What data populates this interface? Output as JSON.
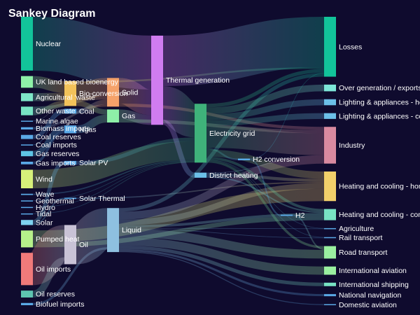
{
  "chart_data": {
    "type": "sankey",
    "title": "Sankey Diagram",
    "background": "#0f0b2e",
    "label_color": "#ffffff",
    "nodes": [
      {
        "id": "nuclear",
        "label": "Nuclear",
        "column": 0,
        "color": "#12c49a"
      },
      {
        "id": "uk_bio",
        "label": "UK land based bioenergy",
        "column": 0,
        "color": "#8ef0a8"
      },
      {
        "id": "agri_waste",
        "label": "Agricultural 'waste'",
        "column": 0,
        "color": "#7ee6c8"
      },
      {
        "id": "other_waste",
        "label": "Other waste",
        "column": 0,
        "color": "#78e3c3"
      },
      {
        "id": "marine_algae",
        "label": "Marine algae",
        "column": 0,
        "color": "#5aa9e6"
      },
      {
        "id": "biomass_imports",
        "label": "Biomass imports",
        "column": 0,
        "color": "#5aa9e6"
      },
      {
        "id": "coal_reserves",
        "label": "Coal reserves",
        "column": 0,
        "color": "#5aa9e6"
      },
      {
        "id": "coal_imports",
        "label": "Coal imports",
        "column": 0,
        "color": "#5aa9e6"
      },
      {
        "id": "gas_reserves",
        "label": "Gas reserves",
        "column": 0,
        "color": "#5ec5e6"
      },
      {
        "id": "gas_imports",
        "label": "Gas imports",
        "column": 0,
        "color": "#5aa9e6"
      },
      {
        "id": "wind",
        "label": "Wind",
        "column": 0,
        "color": "#d7f07a"
      },
      {
        "id": "wave",
        "label": "Wave",
        "column": 0,
        "color": "#5aa9e6"
      },
      {
        "id": "geothermal",
        "label": "Geothermal",
        "column": 0,
        "color": "#5aa9e6"
      },
      {
        "id": "hydro",
        "label": "Hydro",
        "column": 0,
        "color": "#5aa9e6"
      },
      {
        "id": "tidal",
        "label": "Tidal",
        "column": 0,
        "color": "#5aa9e6"
      },
      {
        "id": "solar",
        "label": "Solar",
        "column": 0,
        "color": "#7fd3f0"
      },
      {
        "id": "pumped_heat",
        "label": "Pumped heat",
        "column": 0,
        "color": "#b6f08a"
      },
      {
        "id": "oil_imports",
        "label": "Oil imports",
        "column": 0,
        "color": "#f07a7a"
      },
      {
        "id": "oil_reserves",
        "label": "Oil reserves",
        "column": 0,
        "color": "#5ec5b0"
      },
      {
        "id": "biofuel_imports",
        "label": "Biofuel imports",
        "column": 0,
        "color": "#5aa9e6"
      },
      {
        "id": "bio_conversion",
        "label": "Bio-conversion",
        "column": 1,
        "color": "#f2c25a"
      },
      {
        "id": "coal",
        "label": "Coal",
        "column": 1,
        "color": "#5aa9e6"
      },
      {
        "id": "ngas",
        "label": "Ngas",
        "column": 1,
        "color": "#5aa9e6"
      },
      {
        "id": "solar_pv",
        "label": "Solar PV",
        "column": 1,
        "color": "#5aa9e6"
      },
      {
        "id": "solar_thermal",
        "label": "Solar Thermal",
        "column": 1,
        "color": "#5aa9e6"
      },
      {
        "id": "oil",
        "label": "Oil",
        "column": 1,
        "color": "#c9c3d6"
      },
      {
        "id": "solid",
        "label": "Solid",
        "column": 2,
        "color": "#f5a26a"
      },
      {
        "id": "gas",
        "label": "Gas",
        "column": 2,
        "color": "#8ef0a8"
      },
      {
        "id": "liquid",
        "label": "Liquid",
        "column": 2,
        "color": "#8ec0e0"
      },
      {
        "id": "thermal_generation",
        "label": "Thermal generation",
        "column": 3,
        "color": "#d07cf0"
      },
      {
        "id": "electricity_grid",
        "label": "Electricity grid",
        "column": 4,
        "color": "#3fb27a"
      },
      {
        "id": "district_heating",
        "label": "District heating",
        "column": 4,
        "color": "#6cc0e8"
      },
      {
        "id": "h2_conversion",
        "label": "H2 conversion",
        "column": 5,
        "color": "#5aa9e6"
      },
      {
        "id": "h2",
        "label": "H2",
        "column": 6,
        "color": "#5aa9e6"
      },
      {
        "id": "losses",
        "label": "Losses",
        "column": 7,
        "color": "#12c49a"
      },
      {
        "id": "over_generation",
        "label": "Over generation / exports",
        "column": 7,
        "color": "#7ee6d8"
      },
      {
        "id": "lighting_home",
        "label": "Lighting & appliances - homes",
        "column": 7,
        "color": "#6cc0e8"
      },
      {
        "id": "lighting_commercial",
        "label": "Lighting & appliances - commercial",
        "column": 7,
        "color": "#6cc0e8"
      },
      {
        "id": "industry",
        "label": "Industry",
        "column": 7,
        "color": "#d98aa0"
      },
      {
        "id": "heating_home",
        "label": "Heating and cooling - homes",
        "column": 7,
        "color": "#f2d06a"
      },
      {
        "id": "heating_commercial",
        "label": "Heating and cooling - commercial",
        "column": 7,
        "color": "#78e3c3"
      },
      {
        "id": "agriculture",
        "label": "Agriculture",
        "column": 7,
        "color": "#5aa9e6"
      },
      {
        "id": "rail_transport",
        "label": "Rail transport",
        "column": 7,
        "color": "#5aa9e6"
      },
      {
        "id": "road_transport",
        "label": "Road transport",
        "column": 7,
        "color": "#9af0a0"
      },
      {
        "id": "international_aviation",
        "label": "International aviation",
        "column": 7,
        "color": "#9af0a0"
      },
      {
        "id": "international_shipping",
        "label": "International shipping",
        "column": 7,
        "color": "#78e3c3"
      },
      {
        "id": "national_navigation",
        "label": "National navigation",
        "column": 7,
        "color": "#5aa9e6"
      },
      {
        "id": "domestic_aviation",
        "label": "Domestic aviation",
        "column": 7,
        "color": "#5aa9e6"
      }
    ],
    "links": [
      {
        "source": "nuclear",
        "target": "thermal_generation",
        "value": 839.978
      },
      {
        "source": "uk_bio",
        "target": "bio_conversion",
        "value": 182.01
      },
      {
        "source": "agri_waste",
        "target": "bio_conversion",
        "value": 124.729
      },
      {
        "source": "other_waste",
        "target": "bio_conversion",
        "value": 77.81
      },
      {
        "source": "other_waste",
        "target": "solid",
        "value": 56.587
      },
      {
        "source": "marine_algae",
        "target": "bio_conversion",
        "value": 4.375
      },
      {
        "source": "biomass_imports",
        "target": "solid",
        "value": 35
      },
      {
        "source": "coal_reserves",
        "target": "coal",
        "value": 63.965
      },
      {
        "source": "coal_imports",
        "target": "coal",
        "value": 11.606
      },
      {
        "source": "gas_reserves",
        "target": "ngas",
        "value": 82.233
      },
      {
        "source": "gas_imports",
        "target": "ngas",
        "value": 40.719
      },
      {
        "source": "wind",
        "target": "electricity_grid",
        "value": 289.366
      },
      {
        "source": "wave",
        "target": "electricity_grid",
        "value": 19.013
      },
      {
        "source": "geothermal",
        "target": "electricity_grid",
        "value": 7.013
      },
      {
        "source": "hydro",
        "target": "electricity_grid",
        "value": 6.995
      },
      {
        "source": "tidal",
        "target": "electricity_grid",
        "value": 9.452
      },
      {
        "source": "solar",
        "target": "solar_pv",
        "value": 59.901
      },
      {
        "source": "solar",
        "target": "solar_thermal",
        "value": 19.263
      },
      {
        "source": "pumped_heat",
        "target": "heating_home",
        "value": 193.026
      },
      {
        "source": "pumped_heat",
        "target": "heating_commercial",
        "value": 70.672
      },
      {
        "source": "oil_imports",
        "target": "oil",
        "value": 504.287
      },
      {
        "source": "oil_reserves",
        "target": "oil",
        "value": 107.703
      },
      {
        "source": "biofuel_imports",
        "target": "liquid",
        "value": 35
      },
      {
        "source": "bio_conversion",
        "target": "solid",
        "value": 280.322
      },
      {
        "source": "bio_conversion",
        "target": "gas",
        "value": 81.144
      },
      {
        "source": "bio_conversion",
        "target": "losses",
        "value": 26.862
      },
      {
        "source": "coal",
        "target": "solid",
        "value": 75.571
      },
      {
        "source": "ngas",
        "target": "gas",
        "value": 122.952
      },
      {
        "source": "solar_pv",
        "target": "electricity_grid",
        "value": 59.901
      },
      {
        "source": "solar_thermal",
        "target": "heating_home",
        "value": 19.263
      },
      {
        "source": "oil",
        "target": "liquid",
        "value": 611.99
      },
      {
        "source": "solid",
        "target": "thermal_generation",
        "value": 400.12
      },
      {
        "source": "solid",
        "target": "industry",
        "value": 47.36
      },
      {
        "source": "gas",
        "target": "thermal_generation",
        "value": 151.891
      },
      {
        "source": "gas",
        "target": "industry",
        "value": 52.205
      },
      {
        "source": "liquid",
        "target": "road_transport",
        "value": 135.835
      },
      {
        "source": "liquid",
        "target": "international_aviation",
        "value": 128.69
      },
      {
        "source": "liquid",
        "target": "international_shipping",
        "value": 54.236
      },
      {
        "source": "liquid",
        "target": "industry",
        "value": 121.066
      },
      {
        "source": "liquid",
        "target": "heating_commercial",
        "value": 40.719
      },
      {
        "source": "liquid",
        "target": "agriculture",
        "value": 10
      },
      {
        "source": "liquid",
        "target": "rail_transport",
        "value": 2
      },
      {
        "source": "liquid",
        "target": "national_navigation",
        "value": 33.218
      },
      {
        "source": "liquid",
        "target": "domestic_aviation",
        "value": 14.458
      },
      {
        "source": "liquid",
        "target": "heating_home",
        "value": 89.2
      },
      {
        "source": "liquid",
        "target": "losses",
        "value": 57.574
      },
      {
        "source": "thermal_generation",
        "target": "electricity_grid",
        "value": 525.531
      },
      {
        "source": "thermal_generation",
        "target": "losses",
        "value": 787.129
      },
      {
        "source": "thermal_generation",
        "target": "district_heating",
        "value": 79.329
      },
      {
        "source": "electricity_grid",
        "target": "over_generation",
        "value": 104.453
      },
      {
        "source": "electricity_grid",
        "target": "heating_home",
        "value": 113.726
      },
      {
        "source": "electricity_grid",
        "target": "h2_conversion",
        "value": 27.14
      },
      {
        "source": "electricity_grid",
        "target": "industry",
        "value": 342.165
      },
      {
        "source": "electricity_grid",
        "target": "road_transport",
        "value": 37.797
      },
      {
        "source": "electricity_grid",
        "target": "agriculture",
        "value": 4.412
      },
      {
        "source": "electricity_grid",
        "target": "heating_commercial",
        "value": 40.858
      },
      {
        "source": "electricity_grid",
        "target": "losses",
        "value": 56.691
      },
      {
        "source": "electricity_grid",
        "target": "rail_transport",
        "value": 7.863
      },
      {
        "source": "electricity_grid",
        "target": "lighting_commercial",
        "value": 90.008
      },
      {
        "source": "electricity_grid",
        "target": "lighting_home",
        "value": 93.494
      },
      {
        "source": "district_heating",
        "target": "industry",
        "value": 10.639
      },
      {
        "source": "district_heating",
        "target": "heating_commercial",
        "value": 22.505
      },
      {
        "source": "district_heating",
        "target": "heating_home",
        "value": 46.184
      },
      {
        "source": "h2_conversion",
        "target": "h2",
        "value": 20.897
      },
      {
        "source": "h2_conversion",
        "target": "losses",
        "value": 6.242
      },
      {
        "source": "h2",
        "target": "road_transport",
        "value": 20.897
      }
    ]
  }
}
